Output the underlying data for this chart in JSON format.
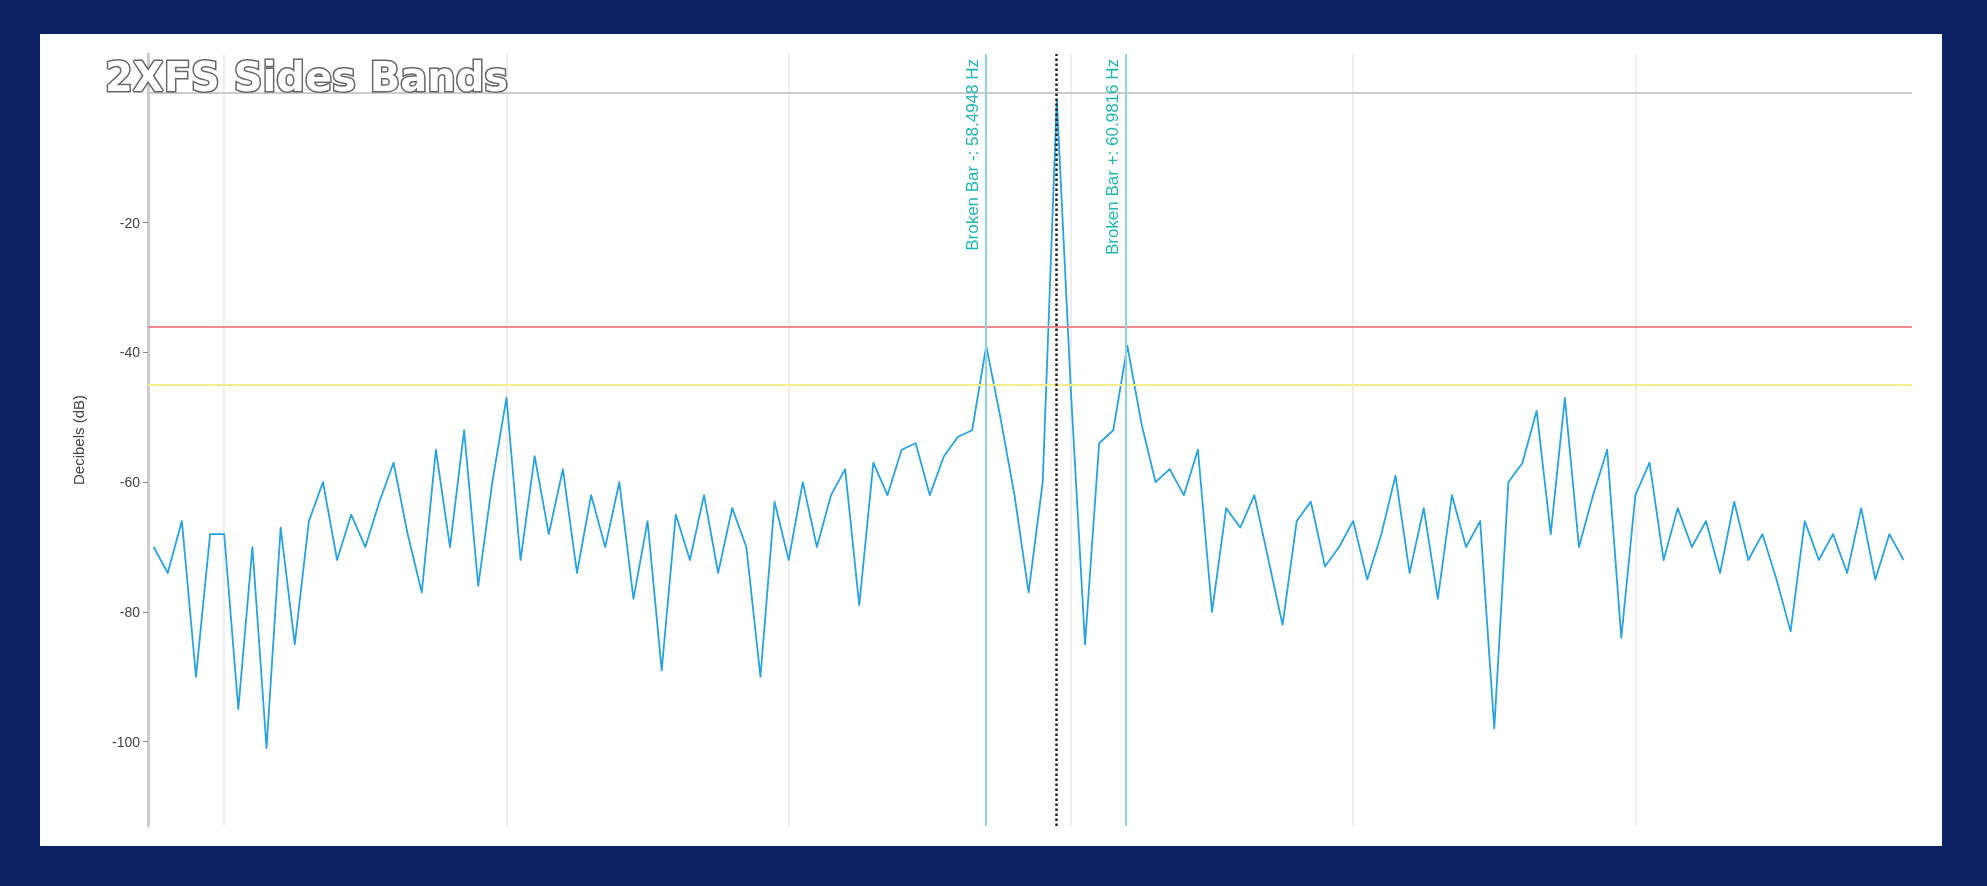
{
  "chart_data": {
    "type": "line",
    "title": "2XFS Sides Bands",
    "ylabel": "Decibels (dB)",
    "xlim": [
      43.65,
      74.9
    ],
    "xticks": [
      {
        "value": 45,
        "label": null
      },
      {
        "value": 50,
        "label": null
      },
      {
        "value": 55,
        "label": null
      },
      {
        "value": 60,
        "label": null
      },
      {
        "value": 65,
        "label": null
      },
      {
        "value": 70,
        "label": null
      }
    ],
    "ylim": [
      -113,
      6
    ],
    "yticks": [
      -100,
      -80,
      -60,
      -40,
      -20
    ],
    "grid": "x",
    "tick_labels": "y",
    "marker": "none",
    "line_style": "solid",
    "ref_lines": [
      {
        "axis": "y",
        "value": 0,
        "color": "#cccccc",
        "line_style": "solid"
      },
      {
        "axis": "y",
        "value": -36,
        "color": "#f08a8f",
        "line_style": "solid"
      },
      {
        "axis": "y",
        "value": -45,
        "color": "#f2ee8c",
        "line_style": "solid"
      },
      {
        "axis": "x",
        "value": 58.4948,
        "label": "Broken Bar -: 58.4948 Hz",
        "color": "#8fd3e0",
        "line_style": "solid"
      },
      {
        "axis": "x",
        "value": 59.7382,
        "color": "#222222",
        "line_style": "dotted"
      },
      {
        "axis": "x",
        "value": 60.9816,
        "label": "Broken Bar +: 60.9816 Hz",
        "color": "#8fd3e0",
        "line_style": "solid"
      }
    ],
    "series": [
      {
        "color": "#29a3e0",
        "x": [
          43.75,
          44,
          44.25,
          44.5,
          44.75,
          45,
          45.25,
          45.5,
          45.75,
          46,
          46.25,
          46.5,
          46.75,
          47,
          47.25,
          47.5,
          47.75,
          48,
          48.25,
          48.5,
          48.75,
          49,
          49.25,
          49.5,
          49.75,
          50,
          50.25,
          50.5,
          50.75,
          51,
          51.25,
          51.5,
          51.75,
          52,
          52.25,
          52.5,
          52.75,
          53,
          53.25,
          53.5,
          53.75,
          54,
          54.25,
          54.5,
          54.75,
          55,
          55.25,
          55.5,
          55.75,
          56,
          56.25,
          56.5,
          56.75,
          57,
          57.25,
          57.5,
          57.75,
          58,
          58.25,
          58.5,
          58.75,
          59,
          59.25,
          59.5,
          59.75,
          60,
          60.25,
          60.5,
          60.75,
          61,
          61.25,
          61.5,
          61.75,
          62,
          62.25,
          62.5,
          62.75,
          63,
          63.25,
          63.5,
          63.75,
          64,
          64.25,
          64.5,
          64.75,
          65,
          65.25,
          65.5,
          65.75,
          66,
          66.25,
          66.5,
          66.75,
          67,
          67.25,
          67.5,
          67.75,
          68,
          68.25,
          68.5,
          68.75,
          69,
          69.25,
          69.5,
          69.75,
          70,
          70.25,
          70.5,
          70.75,
          71,
          71.25,
          71.5,
          71.75,
          72,
          72.25,
          72.5,
          72.75,
          73,
          73.25,
          73.5,
          73.75,
          74,
          74.25,
          74.5,
          74.75
        ],
        "values": [
          -70,
          -74,
          -66,
          -90,
          -68,
          -68,
          -95,
          -70,
          -101,
          -67,
          -85,
          -66,
          -60,
          -72,
          -65,
          -70,
          -63,
          -57,
          -68,
          -77,
          -55,
          -70,
          -52,
          -76,
          -60,
          -47,
          -72,
          -56,
          -68,
          -58,
          -74,
          -62,
          -70,
          -60,
          -78,
          -66,
          -89,
          -65,
          -72,
          -62,
          -74,
          -64,
          -70,
          -90,
          -63,
          -72,
          -60,
          -70,
          -62,
          -58,
          -79,
          -57,
          -62,
          -55,
          -54,
          -62,
          -56,
          -53,
          -52,
          -39,
          -50,
          -62,
          -77,
          -60,
          -1,
          -46,
          -85,
          -54,
          -52,
          -39,
          -51,
          -60,
          -58,
          -62,
          -55,
          -80,
          -64,
          -67,
          -62,
          -72,
          -82,
          -66,
          -63,
          -73,
          -70,
          -66,
          -75,
          -68,
          -59,
          -74,
          -64,
          -78,
          -62,
          -70,
          -66,
          -98,
          -60,
          -57,
          -49,
          -68,
          -47,
          -70,
          -62,
          -55,
          -84,
          -62,
          -57,
          -72,
          -64,
          -70,
          -66,
          -74,
          -63,
          -72,
          -68,
          -75,
          -83,
          -66,
          -72,
          -68,
          -74,
          -64,
          -75,
          -68,
          -72
        ]
      }
    ]
  }
}
